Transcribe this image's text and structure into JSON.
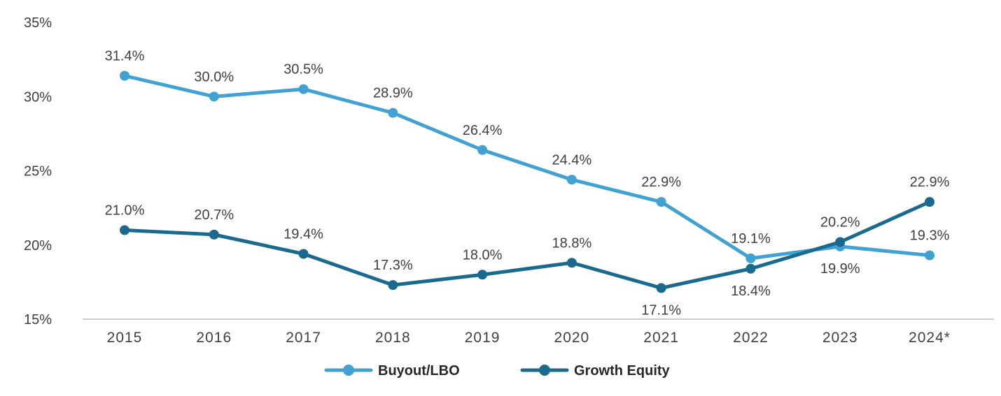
{
  "chart_data": {
    "type": "line",
    "title": "",
    "xlabel": "",
    "ylabel": "",
    "categories": [
      "2015",
      "2016",
      "2017",
      "2018",
      "2019",
      "2020",
      "2021",
      "2022",
      "2023",
      "2024*"
    ],
    "ylim": [
      15,
      35
    ],
    "y_ticks": [
      15,
      20,
      25,
      30,
      35
    ],
    "y_tick_labels": [
      "15%",
      "20%",
      "25%",
      "30%",
      "35%"
    ],
    "grid": false,
    "legend_position": "bottom-center",
    "series": [
      {
        "name": "Buyout/LBO",
        "color": "#41A1D2",
        "values": [
          31.4,
          30.0,
          30.5,
          28.9,
          26.4,
          24.4,
          22.9,
          19.1,
          19.9,
          19.3
        ],
        "labels": [
          "31.4%",
          "30.0%",
          "30.5%",
          "28.9%",
          "26.4%",
          "24.4%",
          "22.9%",
          "19.1%",
          "19.9%",
          "19.3%"
        ],
        "label_positions": [
          "above",
          "above",
          "above",
          "above",
          "above",
          "above",
          "above",
          "above",
          "below",
          "above"
        ]
      },
      {
        "name": "Growth Equity",
        "color": "#1A6A90",
        "values": [
          21.0,
          20.7,
          19.4,
          17.3,
          18.0,
          18.8,
          17.1,
          18.4,
          20.2,
          22.9
        ],
        "labels": [
          "21.0%",
          "20.7%",
          "19.4%",
          "17.3%",
          "18.0%",
          "18.8%",
          "17.1%",
          "18.4%",
          "20.2%",
          "22.9%"
        ],
        "label_positions": [
          "above",
          "above",
          "above",
          "above",
          "above",
          "above",
          "below",
          "below",
          "above",
          "above"
        ]
      }
    ]
  }
}
